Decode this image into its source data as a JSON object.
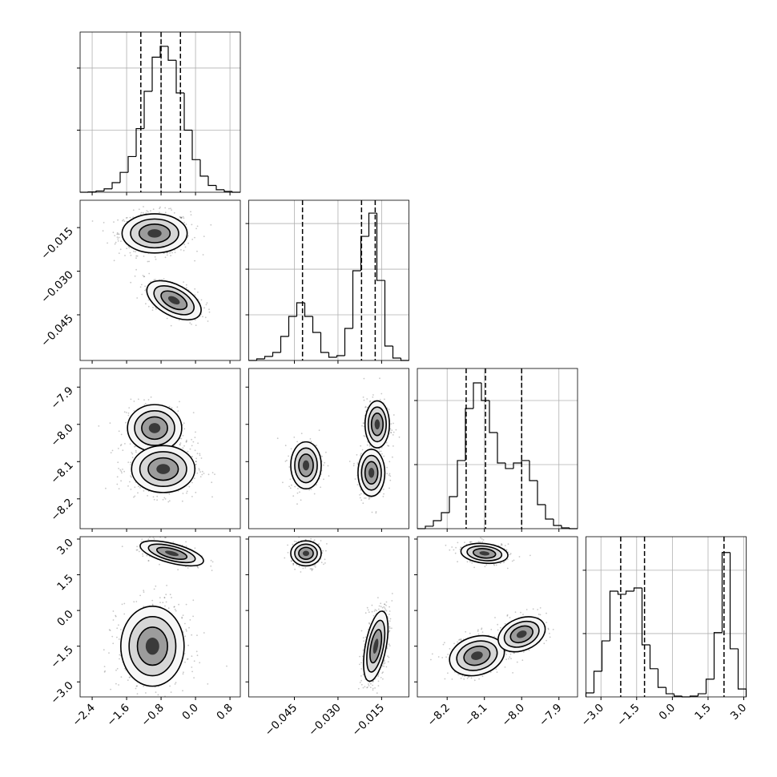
{
  "chart_data": {
    "type": "corner",
    "grid": true,
    "color": "#000000",
    "params": [
      {
        "lim": [
          -2.68,
          1.04
        ],
        "ticks": [
          {
            "value": -2.4,
            "label": "−2.4"
          },
          {
            "value": -1.6,
            "label": "−1.6"
          },
          {
            "value": -0.8,
            "label": "−0.8"
          },
          {
            "value": 0,
            "label": "0.0"
          },
          0.8
        ],
        "bins": [
          -2.68,
          -2.494,
          -2.308,
          -2.122,
          -1.936,
          -1.75,
          -1.564,
          -1.378,
          -1.192,
          -1.006,
          -0.82,
          -0.634,
          -0.448,
          -0.262,
          -0.076,
          0.11,
          0.296,
          0.482,
          0.668,
          0.854,
          1.04
        ],
        "counts": [
          0,
          10,
          40,
          110,
          310,
          640,
          1150,
          2050,
          3250,
          4350,
          4700,
          4250,
          3200,
          2000,
          1050,
          520,
          220,
          80,
          25,
          0
        ],
        "count_lim": [
          0,
          5160
        ],
        "count_ticks": [
          2000,
          4000
        ],
        "quantiles": [
          -1.27,
          -0.8,
          -0.35
        ]
      },
      {
        "lim": [
          -0.0607,
          -0.0056
        ],
        "ticks": [
          {
            "value": -0.045,
            "label": "−0.045"
          },
          {
            "value": -0.03,
            "label": "−0.030"
          },
          {
            "value": -0.015,
            "label": "−0.015"
          }
        ],
        "bins": [
          -0.0607,
          -0.057945,
          -0.05519,
          -0.052435,
          -0.04968,
          -0.046925,
          -0.04417,
          -0.041415,
          -0.03866,
          -0.035905,
          -0.03315,
          -0.030395,
          -0.02764,
          -0.024885,
          -0.02213,
          -0.019375,
          -0.01662,
          -0.013865,
          -0.01111,
          -0.008355,
          -0.0056
        ],
        "counts": [
          0,
          35,
          88,
          175,
          526,
          965,
          1263,
          965,
          614,
          175,
          70,
          105,
          702,
          1965,
          2719,
          3228,
          1754,
          316,
          53,
          0
        ],
        "count_lim": [
          0,
          3510
        ],
        "count_ticks": [
          1000,
          2000,
          3000
        ],
        "quantiles": [
          -0.0422,
          -0.0219,
          -0.0172
        ]
      },
      {
        "lim": [
          -8.28,
          -7.85
        ],
        "ticks": [
          {
            "value": -8.2,
            "label": "−8.2"
          },
          {
            "value": -8.1,
            "label": "−8.1"
          },
          {
            "value": -8.0,
            "label": "−8.0"
          },
          {
            "value": -7.9,
            "label": "−7.9"
          }
        ],
        "bins": [
          -8.28,
          -8.2585,
          -8.237,
          -8.2155,
          -8.194,
          -8.1725,
          -8.151,
          -8.1295,
          -8.108,
          -8.0865,
          -8.065,
          -8.0435,
          -8.022,
          -8.0005,
          -7.979,
          -7.9575,
          -7.936,
          -7.9145,
          -7.893,
          -7.8715,
          -7.85
        ],
        "counts": [
          0,
          38,
          125,
          250,
          500,
          1063,
          1875,
          2275,
          2000,
          1500,
          1025,
          938,
          1025,
          1063,
          750,
          375,
          150,
          50,
          13,
          0
        ],
        "count_lim": [
          0,
          2500
        ],
        "count_ticks": [
          1000,
          2000
        ],
        "quantiles": [
          -8.149,
          -8.097,
          -8.0
        ]
      },
      {
        "lim": [
          -3.63,
          3.1
        ],
        "ticks": [
          {
            "value": -3.0,
            "label": "−3.0"
          },
          {
            "value": -1.5,
            "label": "−1.5"
          },
          {
            "value": 0,
            "label": "0.0"
          },
          1.5,
          {
            "value": 3.0,
            "label": "3.0"
          }
        ],
        "bins": [
          -3.63,
          -3.2935,
          -2.957,
          -2.6205,
          -2.284,
          -1.9475,
          -1.611,
          -1.2745,
          -0.938,
          -0.6015,
          -0.265,
          0.0715,
          0.408,
          0.7445,
          1.081,
          1.4175,
          1.754,
          2.0905,
          2.427,
          2.7635,
          3.1
        ],
        "counts": [
          127,
          810,
          1770,
          3340,
          3240,
          3340,
          3440,
          1645,
          890,
          300,
          100,
          25,
          0,
          25,
          100,
          560,
          2030,
          4560,
          1520,
          250
        ],
        "count_lim": [
          0,
          5060
        ],
        "count_ticks": [
          2000,
          4000
        ],
        "quantiles": [
          -2.17,
          -1.17,
          2.17
        ]
      }
    ],
    "pairs": [
      {
        "clusters": [
          {
            "x": -0.95,
            "y": -0.017,
            "sx": 0.36,
            "sy": 0.0032,
            "rho": 0.0,
            "weight": 0.7
          },
          {
            "x": -0.5,
            "y": -0.04,
            "sx": 0.3,
            "sy": 0.0032,
            "rho": -0.5,
            "weight": 0.3
          }
        ]
      },
      {
        "clusters": [
          {
            "x": -0.95,
            "y": -8.01,
            "sx": 0.3,
            "sy": 0.03,
            "rho": 0.0,
            "weight": 0.35
          },
          {
            "x": -0.75,
            "y": -8.12,
            "sx": 0.35,
            "sy": 0.03,
            "rho": 0.0,
            "weight": 0.65
          }
        ]
      },
      {
        "clusters": [
          {
            "x": -0.041,
            "y": -8.11,
            "sx": 0.0025,
            "sy": 0.03,
            "rho": 0.0,
            "weight": 0.3
          },
          {
            "x": -0.0165,
            "y": -8.0,
            "sx": 0.002,
            "sy": 0.03,
            "rho": 0.0,
            "weight": 0.35
          },
          {
            "x": -0.0185,
            "y": -8.13,
            "sx": 0.0022,
            "sy": 0.03,
            "rho": 0.0,
            "weight": 0.35
          }
        ]
      },
      {
        "clusters": [
          {
            "x": -0.55,
            "y": 2.4,
            "sx": 0.35,
            "sy": 0.25,
            "rho": -0.6,
            "weight": 0.3
          },
          {
            "x": -1.0,
            "y": -1.5,
            "sx": 0.35,
            "sy": 0.8,
            "rho": 0.0,
            "weight": 0.7
          }
        ]
      },
      {
        "clusters": [
          {
            "x": -0.041,
            "y": 2.4,
            "sx": 0.0025,
            "sy": 0.25,
            "rho": 0.0,
            "weight": 0.3
          },
          {
            "x": -0.017,
            "y": -1.5,
            "sx": 0.002,
            "sy": 0.7,
            "rho": 0.5,
            "weight": 0.7
          }
        ]
      },
      {
        "clusters": [
          {
            "x": -8.1,
            "y": 2.4,
            "sx": 0.03,
            "sy": 0.2,
            "rho": -0.2,
            "weight": 0.3
          },
          {
            "x": -8.12,
            "y": -1.9,
            "sx": 0.035,
            "sy": 0.4,
            "rho": 0.2,
            "weight": 0.35
          },
          {
            "x": -8.0,
            "y": -1.0,
            "sx": 0.03,
            "sy": 0.35,
            "rho": 0.3,
            "weight": 0.35
          }
        ]
      }
    ]
  }
}
